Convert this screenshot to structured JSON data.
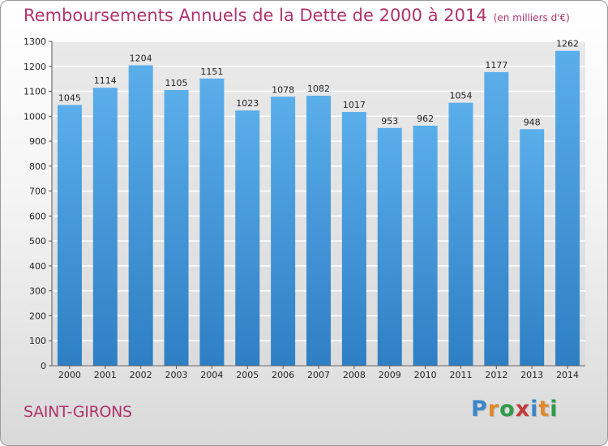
{
  "header": {
    "title": "Remboursements Annuels de la Dette de 2000 à 2014",
    "unit": "(en milliers d'€)"
  },
  "footer": {
    "commune": "SAINT-GIRONS",
    "brand": "Proxiti"
  },
  "colors": {
    "title": "#b0336b",
    "bar_top": "#5aaeea",
    "bar_bottom": "#2e7fc4",
    "grid": "#ffffff"
  },
  "chart_data": {
    "type": "bar",
    "title": "Remboursements Annuels de la Dette de 2000 à 2014",
    "subtitle": "(en milliers d'€)",
    "xlabel": "",
    "ylabel": "",
    "categories": [
      "2000",
      "2001",
      "2002",
      "2003",
      "2004",
      "2005",
      "2006",
      "2007",
      "2008",
      "2009",
      "2010",
      "2011",
      "2012",
      "2013",
      "2014"
    ],
    "values": [
      1045,
      1114,
      1204,
      1105,
      1151,
      1023,
      1078,
      1082,
      1017,
      953,
      962,
      1054,
      1177,
      948,
      1262
    ],
    "ylim": [
      0,
      1300
    ],
    "yticks": [
      0,
      100,
      200,
      300,
      400,
      500,
      600,
      700,
      800,
      900,
      1000,
      1100,
      1200,
      1300
    ],
    "grid": true,
    "data_labels": true
  }
}
